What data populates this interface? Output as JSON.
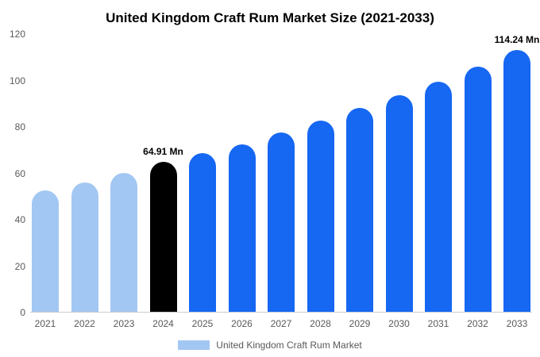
{
  "title": "United Kingdom Craft Rum Market Size (2021-2033)",
  "chart_data": {
    "type": "bar",
    "title": "United Kingdom Craft Rum Market Size (2021-2033)",
    "categories": [
      "2021",
      "2022",
      "2023",
      "2024",
      "2025",
      "2026",
      "2027",
      "2028",
      "2029",
      "2030",
      "2031",
      "2032",
      "2033"
    ],
    "values": [
      52.5,
      56,
      60,
      64.91,
      68.5,
      72.5,
      77.5,
      82.5,
      88,
      93.5,
      99.5,
      106,
      114.24
    ],
    "bar_colors": [
      "#A3C7F3",
      "#A3C7F3",
      "#A3C7F3",
      "#000000",
      "#1667F2",
      "#1667F2",
      "#1667F2",
      "#1667F2",
      "#1667F2",
      "#1667F2",
      "#1667F2",
      "#1667F2",
      "#1667F2"
    ],
    "annotations": {
      "2024": "64.91 Mn",
      "2033": "114.24 Mn"
    },
    "xlabel": "",
    "ylabel": "",
    "ylim": [
      0,
      120
    ],
    "yticks": [
      0,
      20,
      40,
      60,
      80,
      100,
      120
    ],
    "grid": false,
    "legend_position": "bottom",
    "legend": [
      {
        "label": "United Kingdom Craft Rum Market",
        "color": "#A3C7F3"
      }
    ]
  }
}
